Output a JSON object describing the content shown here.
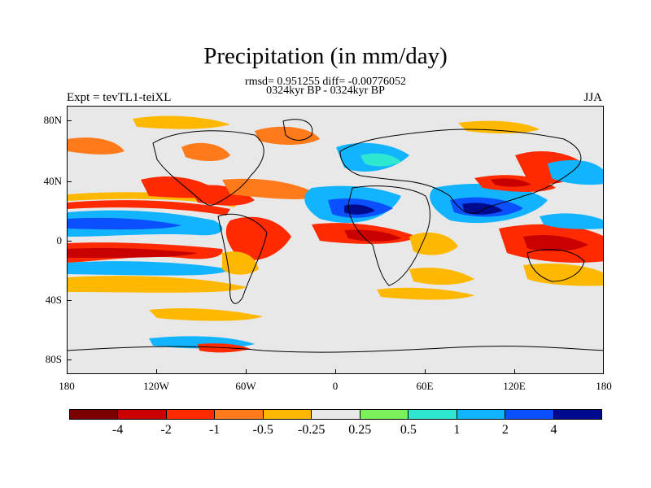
{
  "header": {
    "title": "Precipitation (in mm/day)",
    "stats": "rmsd= 0.951255  diff= -0.00776052",
    "period": "0324kyr BP - 0324kyr BP",
    "experiment": "Expt = tevTL1-teiXL",
    "season": "JJA"
  },
  "axes": {
    "y_labels": [
      "80N",
      "40N",
      "0",
      "40S",
      "80S"
    ],
    "x_labels": [
      "180",
      "120W",
      "60W",
      "0",
      "60E",
      "120E",
      "180"
    ]
  },
  "colorbar": {
    "colors": [
      "#7a0000",
      "#c80000",
      "#ff2a00",
      "#ff7a1a",
      "#ffb800",
      "#e8e8e8",
      "#7af05a",
      "#2ee8d0",
      "#12b4ff",
      "#0a50ff",
      "#000a8c"
    ],
    "labels": [
      "-4",
      "-2",
      "-1",
      "-0.5",
      "-0.25",
      "0.25",
      "0.5",
      "1",
      "2",
      "4"
    ]
  }
}
